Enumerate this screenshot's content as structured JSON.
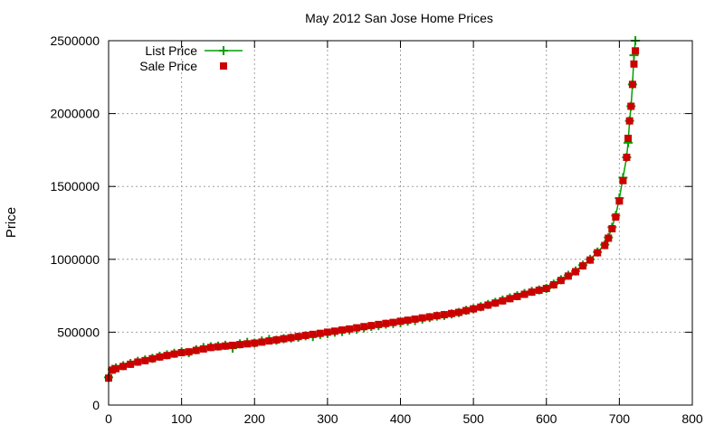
{
  "chart_data": {
    "type": "scatter",
    "title": "May 2012 San Jose Home Prices",
    "xlabel": "",
    "ylabel": "Price",
    "xlim": [
      0,
      800
    ],
    "ylim": [
      0,
      2500000
    ],
    "x_ticks": [
      0,
      100,
      200,
      300,
      400,
      500,
      600,
      700,
      800
    ],
    "y_ticks": [
      0,
      500000,
      1000000,
      1500000,
      2000000,
      2500000
    ],
    "grid": true,
    "legend_position": "top-left",
    "series": [
      {
        "name": "List Price",
        "color": "#00a000",
        "marker": "plus",
        "style": "linespoints",
        "x": [
          0,
          5,
          10,
          20,
          30,
          40,
          50,
          60,
          70,
          80,
          90,
          100,
          110,
          120,
          130,
          140,
          150,
          160,
          170,
          180,
          190,
          200,
          210,
          220,
          230,
          240,
          250,
          260,
          270,
          280,
          290,
          300,
          310,
          320,
          330,
          340,
          350,
          360,
          370,
          380,
          390,
          400,
          410,
          420,
          430,
          440,
          450,
          460,
          470,
          480,
          490,
          500,
          510,
          520,
          530,
          540,
          550,
          560,
          570,
          580,
          590,
          600,
          610,
          620,
          630,
          640,
          650,
          660,
          670,
          680,
          685,
          690,
          695,
          700,
          705,
          710,
          712,
          714,
          716,
          718,
          720,
          722
        ],
        "values": [
          190000,
          245000,
          255000,
          270000,
          285000,
          300000,
          310000,
          320000,
          335000,
          345000,
          355000,
          365000,
          360000,
          380000,
          395000,
          400000,
          405000,
          410000,
          390000,
          420000,
          430000,
          425000,
          440000,
          450000,
          445000,
          455000,
          460000,
          465000,
          475000,
          470000,
          485000,
          490000,
          500000,
          505000,
          515000,
          520000,
          530000,
          540000,
          545000,
          555000,
          560000,
          565000,
          575000,
          580000,
          590000,
          600000,
          610000,
          615000,
          625000,
          635000,
          650000,
          660000,
          675000,
          690000,
          705000,
          720000,
          735000,
          750000,
          765000,
          780000,
          790000,
          800000,
          830000,
          860000,
          890000,
          920000,
          960000,
          1000000,
          1050000,
          1100000,
          1150000,
          1220000,
          1300000,
          1420000,
          1560000,
          1700000,
          1800000,
          1950000,
          2050000,
          2200000,
          2400000,
          2500000
        ]
      },
      {
        "name": "Sale Price",
        "color": "#cc0000",
        "marker": "square",
        "style": "points",
        "x": [
          0,
          5,
          10,
          20,
          30,
          40,
          50,
          60,
          70,
          80,
          90,
          100,
          110,
          120,
          130,
          140,
          150,
          160,
          170,
          180,
          190,
          200,
          210,
          220,
          230,
          240,
          250,
          260,
          270,
          280,
          290,
          300,
          310,
          320,
          330,
          340,
          350,
          360,
          370,
          380,
          390,
          400,
          410,
          420,
          430,
          440,
          450,
          460,
          470,
          480,
          490,
          500,
          510,
          520,
          530,
          540,
          550,
          560,
          570,
          580,
          590,
          600,
          610,
          620,
          630,
          640,
          650,
          660,
          670,
          680,
          685,
          690,
          695,
          700,
          705,
          710,
          712,
          714,
          716,
          718,
          720,
          722
        ],
        "values": [
          185000,
          240000,
          250000,
          265000,
          280000,
          295000,
          305000,
          318000,
          330000,
          340000,
          350000,
          360000,
          365000,
          375000,
          385000,
          395000,
          400000,
          405000,
          410000,
          415000,
          420000,
          425000,
          432000,
          440000,
          447000,
          455000,
          462000,
          470000,
          478000,
          485000,
          492000,
          500000,
          507000,
          515000,
          522000,
          530000,
          538000,
          545000,
          553000,
          560000,
          567000,
          575000,
          582000,
          590000,
          598000,
          605000,
          613000,
          620000,
          628000,
          636000,
          648000,
          660000,
          672000,
          686000,
          700000,
          715000,
          730000,
          745000,
          760000,
          775000,
          788000,
          800000,
          825000,
          855000,
          885000,
          915000,
          955000,
          995000,
          1045000,
          1095000,
          1145000,
          1210000,
          1290000,
          1400000,
          1540000,
          1700000,
          1830000,
          1950000,
          2050000,
          2200000,
          2340000,
          2430000
        ]
      }
    ]
  }
}
